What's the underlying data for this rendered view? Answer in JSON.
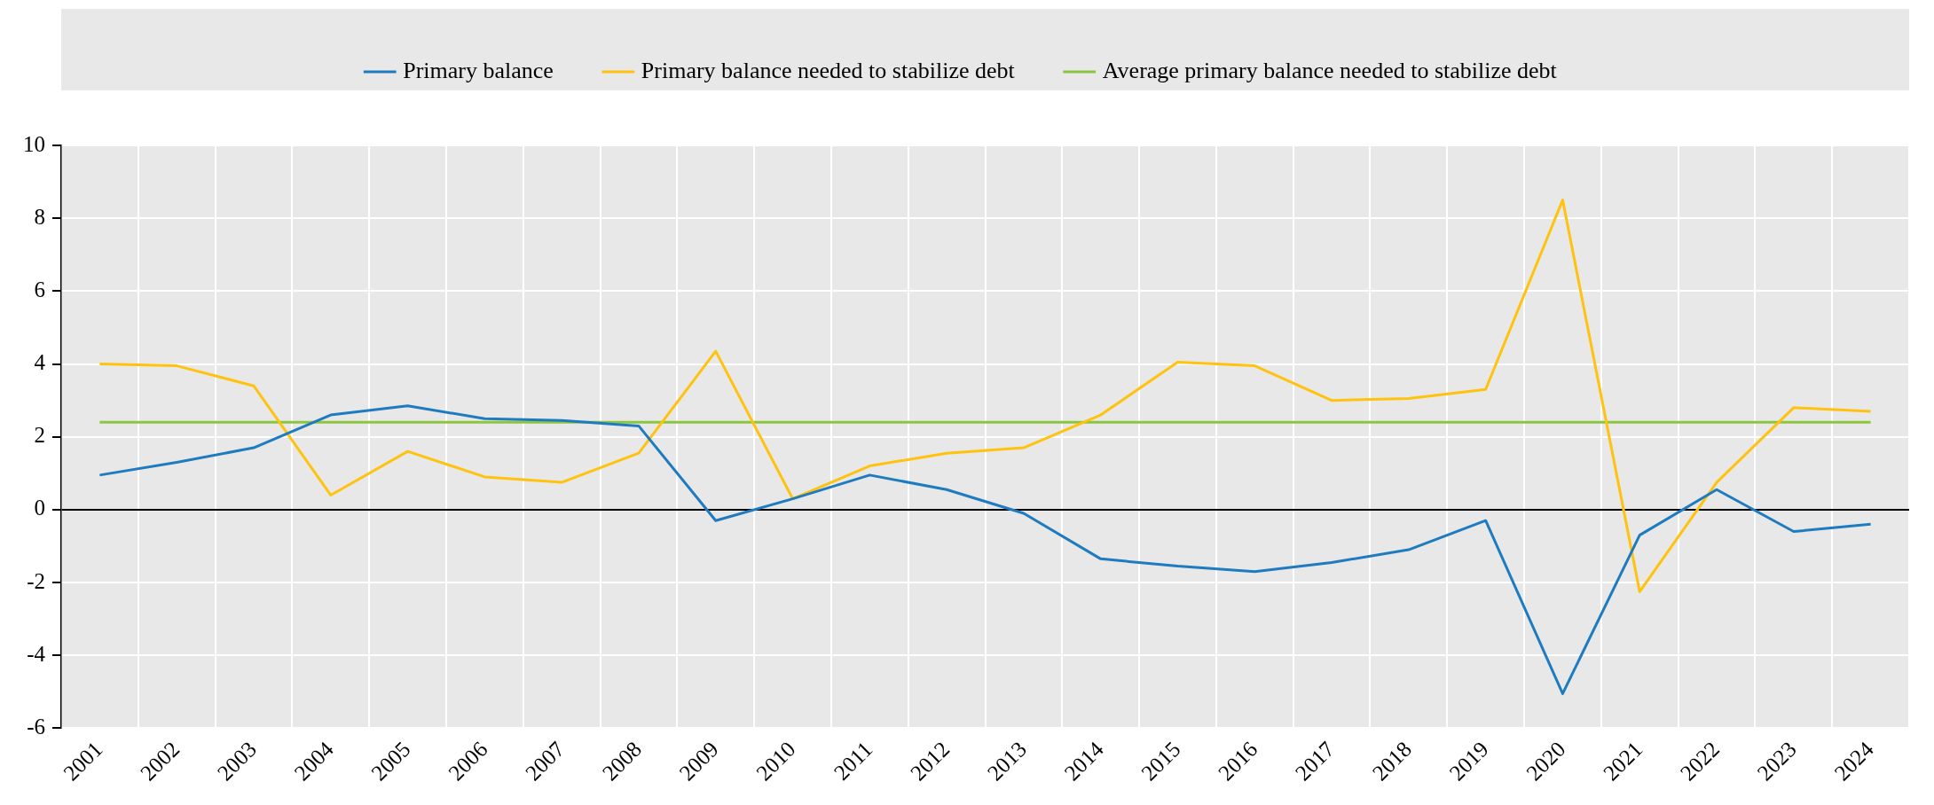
{
  "chart_data": {
    "type": "line",
    "categories": [
      "2001",
      "2002",
      "2003",
      "2004",
      "2005",
      "2006",
      "2007",
      "2008",
      "2009",
      "2010",
      "2011",
      "2012",
      "2013",
      "2014",
      "2015",
      "2016",
      "2017",
      "2018",
      "2019",
      "2020",
      "2021",
      "2022",
      "2023",
      "2024"
    ],
    "series": [
      {
        "name": "Primary balance",
        "color": "#1f7bbf",
        "values": [
          0.95,
          1.3,
          1.7,
          2.6,
          2.85,
          2.5,
          2.45,
          2.3,
          -0.3,
          0.3,
          0.95,
          0.55,
          -0.1,
          -1.35,
          -1.55,
          -1.7,
          -1.45,
          -1.1,
          -0.3,
          -5.05,
          -0.7,
          0.55,
          -0.6,
          -0.4
        ]
      },
      {
        "name": "Primary balance needed to stabilize debt",
        "color": "#ffc20e",
        "values": [
          4.0,
          3.95,
          3.4,
          0.4,
          1.6,
          0.9,
          0.75,
          1.55,
          4.35,
          0.3,
          1.2,
          1.55,
          1.7,
          2.6,
          4.05,
          3.95,
          3.0,
          3.05,
          3.3,
          8.5,
          -2.25,
          0.75,
          2.8,
          2.7
        ]
      },
      {
        "name": "Average primary balance needed to stabilize debt",
        "color": "#8cc63f",
        "values": [
          2.4,
          2.4,
          2.4,
          2.4,
          2.4,
          2.4,
          2.4,
          2.4,
          2.4,
          2.4,
          2.4,
          2.4,
          2.4,
          2.4,
          2.4,
          2.4,
          2.4,
          2.4,
          2.4,
          2.4,
          2.4,
          2.4,
          2.4,
          2.4
        ]
      }
    ],
    "ylim": [
      -6,
      10
    ],
    "yticks": [
      -6,
      -4,
      -2,
      0,
      2,
      4,
      6,
      8,
      10
    ],
    "grid": true,
    "legend": "top",
    "marker": "none",
    "line_style": "solid"
  }
}
